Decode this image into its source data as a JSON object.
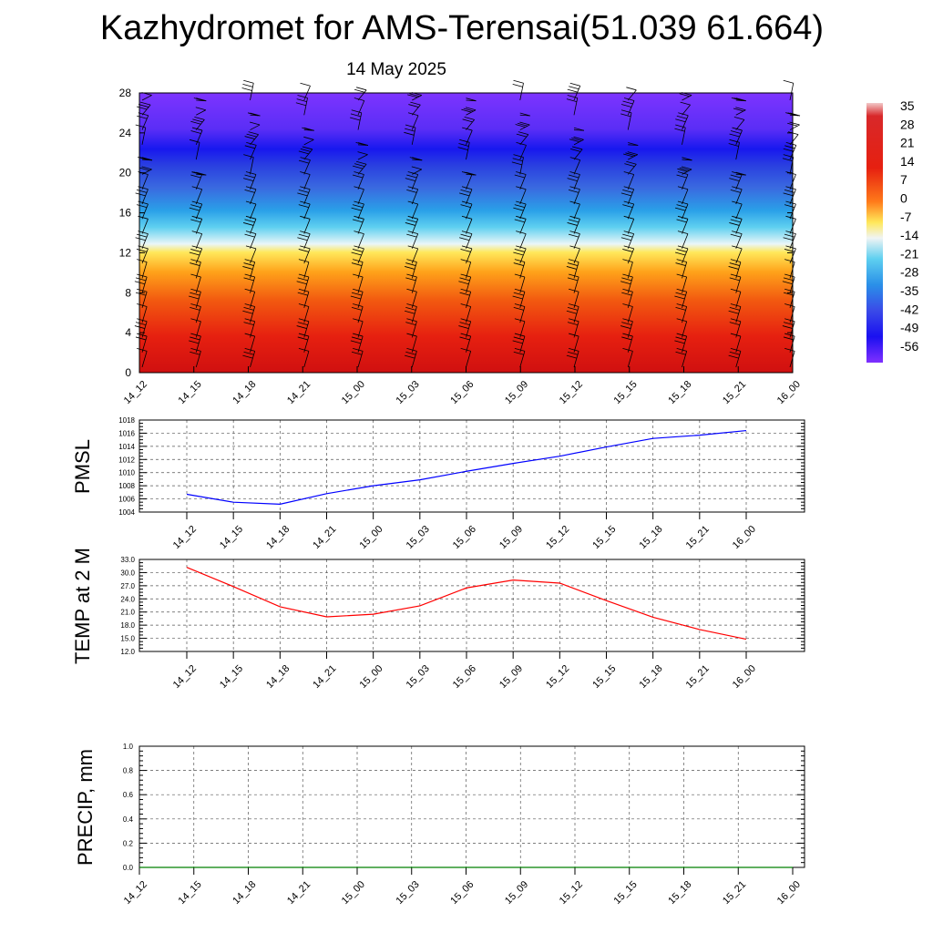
{
  "title": "Kazhydromet for AMS-Terensai(51.039 61.664)",
  "subtitle": "14 May 2025",
  "colors": {
    "pmsl_line": "#0000ff",
    "temp_line": "#ff0000",
    "precip_line": "#008000",
    "grid": "#555555",
    "wind_barb": "#000000"
  },
  "chart_data": [
    {
      "id": "profile",
      "type": "heatmap",
      "x_tick_labels": [
        "14_12",
        "14_15",
        "14_18",
        "14_21",
        "15_00",
        "15_03",
        "15_06",
        "15_09",
        "15_12",
        "15_15",
        "15_18",
        "15_21",
        "16_00"
      ],
      "y_ticks": [
        0,
        4,
        8,
        12,
        16,
        20,
        24,
        28
      ],
      "ylim": [
        0,
        28
      ],
      "colorbar_labels": [
        "35",
        "28",
        "21",
        "14",
        "7",
        "0",
        "-7",
        "-14",
        "-21",
        "-28",
        "-35",
        "-42",
        "-49",
        "-56"
      ],
      "wind_barbs": true
    },
    {
      "id": "pmsl",
      "type": "line",
      "ylabel": "PMSL",
      "x_tick_labels": [
        "14_12",
        "14_15",
        "14_18",
        "14_21",
        "15_00",
        "15_03",
        "15_06",
        "15_09",
        "15_12",
        "15_15",
        "15_18",
        "15_21",
        "16_00"
      ],
      "y_ticks": [
        "1004",
        "1006",
        "1008",
        "1010",
        "1012",
        "1014",
        "1016",
        "1018"
      ],
      "ylim": [
        1004,
        1018
      ],
      "series": [
        {
          "values": [
            1006.7,
            1005.5,
            1005.2,
            1006.8,
            1008.0,
            1008.9,
            1010.2,
            1011.4,
            1012.5,
            1013.9,
            1015.2,
            1015.7,
            1016.4
          ]
        }
      ],
      "grid": true
    },
    {
      "id": "temp",
      "type": "line",
      "ylabel": "TEMP at 2 M",
      "x_tick_labels": [
        "14_12",
        "14_15",
        "14_18",
        "14_21",
        "15_00",
        "15_03",
        "15_06",
        "15_09",
        "15_12",
        "15_15",
        "15_18",
        "15_21",
        "16_00"
      ],
      "y_ticks": [
        "12.0",
        "15.0",
        "18.0",
        "21.0",
        "24.0",
        "27.0",
        "30.0",
        "33.0"
      ],
      "ylim": [
        12,
        33
      ],
      "series": [
        {
          "values": [
            31.2,
            26.8,
            22.2,
            19.9,
            20.5,
            22.4,
            26.5,
            28.3,
            27.6,
            23.6,
            19.8,
            17.0,
            14.8
          ]
        }
      ],
      "grid": true
    },
    {
      "id": "precip",
      "type": "line",
      "ylabel": "PRECIP, mm",
      "x_tick_labels": [
        "14_12",
        "14_15",
        "14_18",
        "14_21",
        "15_00",
        "15_03",
        "15_06",
        "15_09",
        "15_12",
        "15_15",
        "15_18",
        "15_21",
        "16_00"
      ],
      "y_ticks": [
        "0.0",
        "0.2",
        "0.4",
        "0.6",
        "0.8",
        "1.0"
      ],
      "ylim": [
        0,
        1
      ],
      "series": [
        {
          "values": [
            0,
            0,
            0,
            0,
            0,
            0,
            0,
            0,
            0,
            0,
            0,
            0,
            0
          ]
        }
      ],
      "grid": true
    }
  ]
}
